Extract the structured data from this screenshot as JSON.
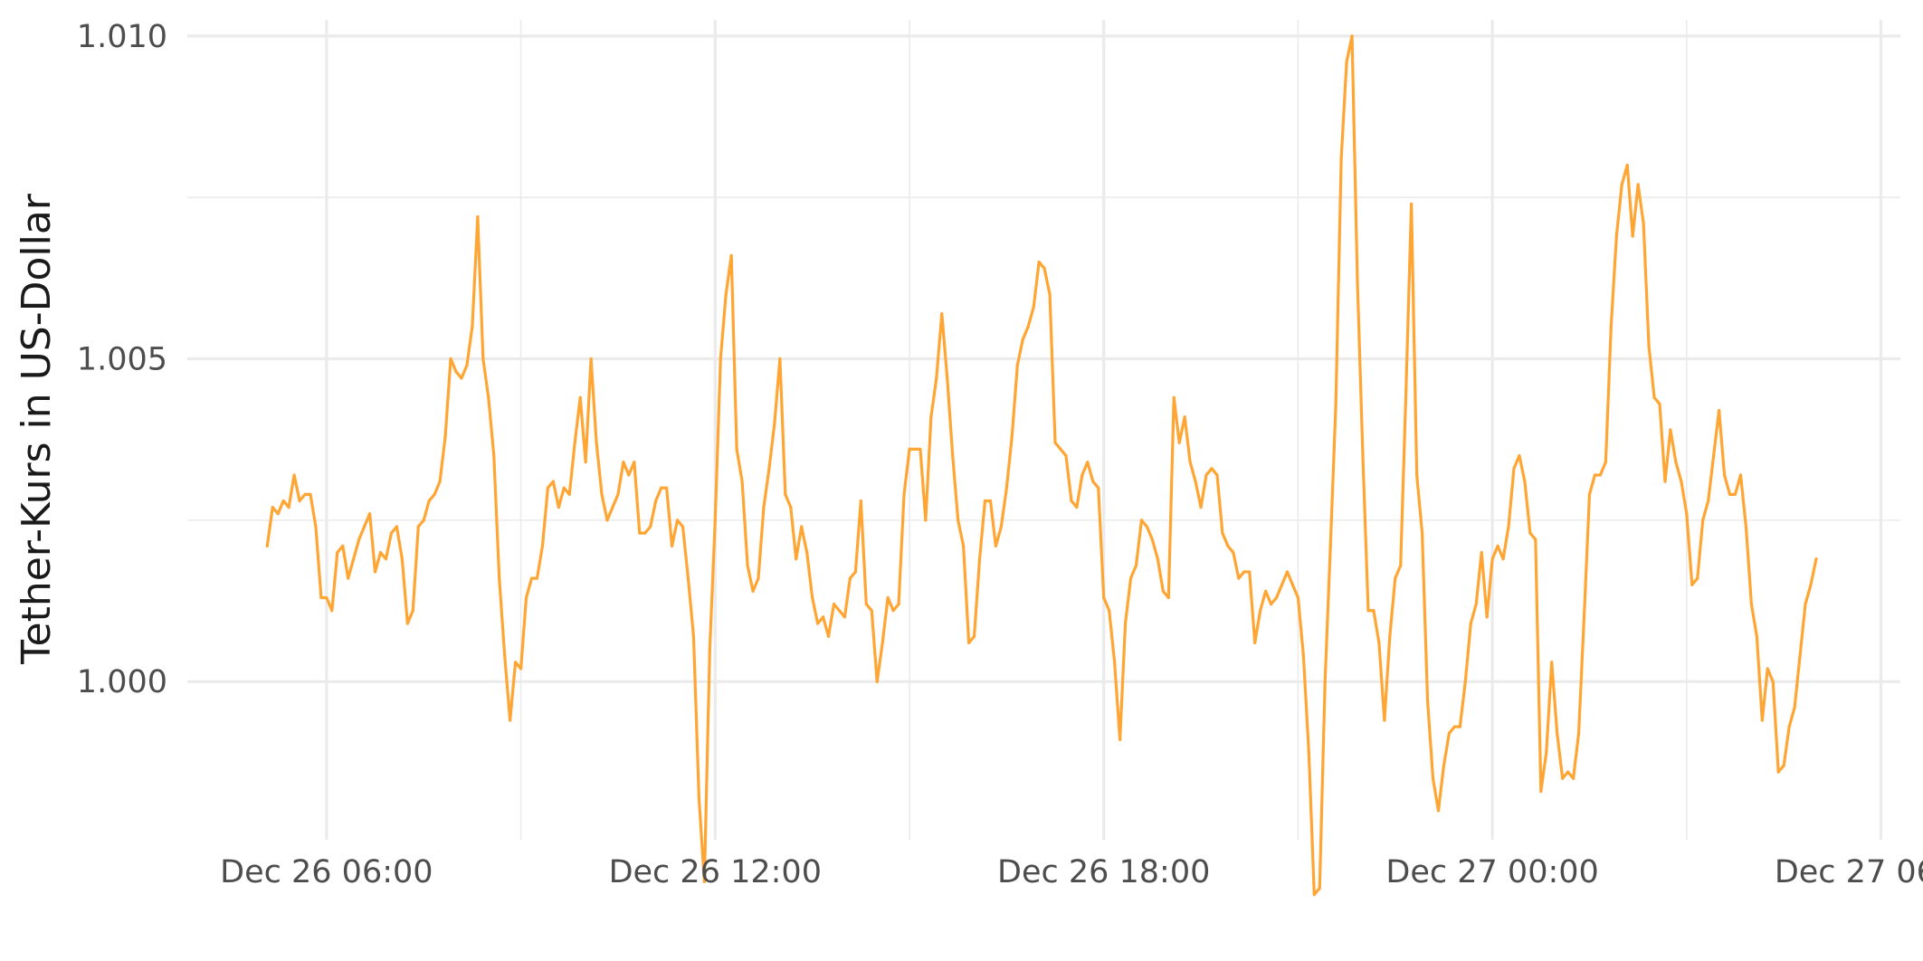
{
  "chart_data": {
    "type": "line",
    "title": "",
    "xlabel": "",
    "ylabel": "Tether-Kurs in US-Dollar",
    "ylim": [
      0.99755,
      1.01025
    ],
    "xlim": [
      "Dec 26 03:51",
      "Dec 27 06:18"
    ],
    "y_ticks": [
      1.0,
      1.005,
      1.01
    ],
    "y_tick_labels": [
      "1.000",
      "1.005",
      "1.010"
    ],
    "x_ticks": [
      "Dec 26 06:00",
      "Dec 26 12:00",
      "Dec 26 18:00",
      "Dec 27 00:00",
      "Dec 27 06:00"
    ],
    "x_tick_labels": [
      "Dec 26 06:00",
      "Dec 26 12:00",
      "Dec 26 18:00",
      "Dec 27 00:00",
      "Dec 27 06:00"
    ],
    "grid": true,
    "line_color": "#FFA533",
    "series": [
      {
        "start_time": "Dec 26 05:05",
        "interval_minutes": 5,
        "values": [
          1.0021,
          1.0027,
          1.0026,
          1.0028,
          1.0027,
          1.0032,
          1.0028,
          1.0029,
          1.0029,
          1.0024,
          1.0013,
          1.0013,
          1.0011,
          1.002,
          1.0021,
          1.0016,
          1.0019,
          1.0022,
          1.0024,
          1.0026,
          1.0017,
          1.002,
          1.0019,
          1.0023,
          1.0024,
          1.0019,
          1.0009,
          1.0011,
          1.0024,
          1.0025,
          1.0028,
          1.0029,
          1.0031,
          1.0038,
          1.005,
          1.0048,
          1.0047,
          1.0049,
          1.0055,
          1.0072,
          1.005,
          1.0044,
          1.0035,
          1.0016,
          1.0004,
          0.9994,
          1.0003,
          1.0002,
          1.0013,
          1.0016,
          1.0016,
          1.0021,
          1.003,
          1.0031,
          1.0027,
          1.003,
          1.0029,
          1.0037,
          1.0044,
          1.0034,
          1.005,
          1.0037,
          1.0029,
          1.0025,
          1.0027,
          1.0029,
          1.0034,
          1.0032,
          1.0034,
          1.0023,
          1.0023,
          1.0024,
          1.0028,
          1.003,
          1.003,
          1.0021,
          1.0025,
          1.0024,
          1.0016,
          1.0007,
          0.9982,
          0.9969,
          1.0005,
          1.0025,
          1.005,
          1.006,
          1.0066,
          1.0036,
          1.0031,
          1.0018,
          1.0014,
          1.0016,
          1.0027,
          1.0033,
          1.004,
          1.005,
          1.0029,
          1.0027,
          1.0019,
          1.0024,
          1.002,
          1.0013,
          1.0009,
          1.001,
          1.0007,
          1.0012,
          1.0011,
          1.001,
          1.0016,
          1.0017,
          1.0028,
          1.0012,
          1.0011,
          1.0,
          1.0006,
          1.0013,
          1.0011,
          1.0012,
          1.0029,
          1.0036,
          1.0036,
          1.0036,
          1.0025,
          1.0041,
          1.0047,
          1.0057,
          1.0047,
          1.0035,
          1.0025,
          1.0021,
          1.0006,
          1.0007,
          1.0019,
          1.0028,
          1.0028,
          1.0021,
          1.0024,
          1.003,
          1.0038,
          1.0049,
          1.0053,
          1.0055,
          1.0058,
          1.0065,
          1.0064,
          1.006,
          1.0037,
          1.0036,
          1.0035,
          1.0028,
          1.0027,
          1.0032,
          1.0034,
          1.0031,
          1.003,
          1.0013,
          1.0011,
          1.0003,
          0.9991,
          1.0009,
          1.0016,
          1.0018,
          1.0025,
          1.0024,
          1.0022,
          1.0019,
          1.0014,
          1.0013,
          1.0044,
          1.0037,
          1.0041,
          1.0034,
          1.0031,
          1.0027,
          1.0032,
          1.0033,
          1.0032,
          1.0023,
          1.0021,
          1.002,
          1.0016,
          1.0017,
          1.0017,
          1.0006,
          1.0011,
          1.0014,
          1.0012,
          1.0013,
          1.0015,
          1.0017,
          1.0015,
          1.0013,
          1.0004,
          0.9989,
          0.9967,
          0.9968,
          1.0,
          1.0021,
          1.0043,
          1.0081,
          1.0096,
          1.01,
          1.0062,
          1.0035,
          1.0011,
          1.0011,
          1.0006,
          0.9994,
          1.0007,
          1.0016,
          1.0018,
          1.0045,
          1.0074,
          1.0032,
          1.0023,
          0.9997,
          0.9985,
          0.998,
          0.9987,
          0.9992,
          0.9993,
          0.9993,
          1.0,
          1.0009,
          1.0012,
          1.002,
          1.001,
          1.0019,
          1.0021,
          1.0019,
          1.0024,
          1.0033,
          1.0035,
          1.0031,
          1.0023,
          1.0022,
          0.9983,
          0.9989,
          1.0003,
          0.9992,
          0.9985,
          0.9986,
          0.9985,
          0.9992,
          1.001,
          1.0029,
          1.0032,
          1.0032,
          1.0034,
          1.0055,
          1.0069,
          1.0077,
          1.008,
          1.0069,
          1.0077,
          1.0071,
          1.0052,
          1.0044,
          1.0043,
          1.0031,
          1.0039,
          1.0034,
          1.0031,
          1.0026,
          1.0015,
          1.0016,
          1.0025,
          1.0028,
          1.0035,
          1.0042,
          1.0032,
          1.0029,
          1.0029,
          1.0032,
          1.0024,
          1.0012,
          1.0007,
          0.9994,
          1.0002,
          1.0,
          0.9986,
          0.9987,
          0.9993,
          0.9996,
          1.0004,
          1.0012,
          1.0015,
          1.0019
        ]
      }
    ]
  }
}
